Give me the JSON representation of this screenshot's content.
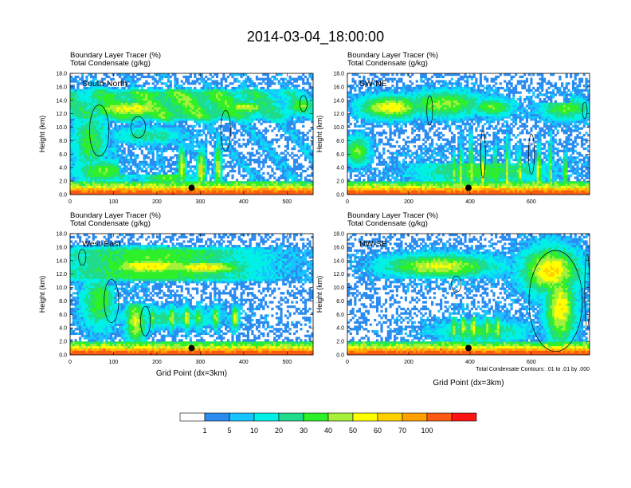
{
  "title": "2014-03-04_18:00:00",
  "colors": {
    "levels": [
      "#ffffff",
      "#2b8cf0",
      "#18c4ff",
      "#00f0e6",
      "#1fdc8c",
      "#2ef02a",
      "#a6f03a",
      "#ffff00",
      "#ffd000",
      "#ffa000",
      "#ff5a14",
      "#ff1414"
    ],
    "contour": "#000000",
    "marker": "#000000"
  },
  "chart_data": {
    "type": "heatmap",
    "main_title": "2014-03-04_18:00:00",
    "legend": {
      "labels": [
        "1",
        "5",
        "10",
        "20",
        "30",
        "40",
        "50",
        "60",
        "70",
        "100"
      ],
      "bins": 12
    },
    "panels": [
      {
        "id": "south-north",
        "label": "South-North",
        "title_line1": "Boundary Layer Tracer    (%)",
        "title_line2": "Total Condensate    (g/kg)",
        "ylabel": "Height (km)",
        "xlabel": "",
        "xlim": [
          0,
          560
        ],
        "ylim": [
          0,
          18
        ],
        "xticks": [
          0,
          100,
          200,
          300,
          400,
          500
        ],
        "xtick_labels": [
          "0",
          "100",
          "200",
          "300",
          "400",
          "500"
        ],
        "yticks": [
          0,
          2,
          4,
          6,
          8,
          10,
          12,
          14,
          16,
          18
        ],
        "ytick_labels": [
          "0.0",
          "2.0",
          "4.0",
          "6.0",
          "8.0",
          "10.0",
          "12.0",
          "14.0",
          "16.0",
          "18.0"
        ],
        "marker": [
          280,
          1.0
        ],
        "note": ""
      },
      {
        "id": "sw-ne",
        "label": "SW-NE",
        "title_line1": "Boundary Layer Tracer    (%)",
        "title_line2": "Total Condensate    (g/kg)",
        "ylabel": "Height (km)",
        "xlabel": "",
        "xlim": [
          0,
          790
        ],
        "ylim": [
          0,
          18
        ],
        "xticks": [
          0,
          200,
          400,
          600
        ],
        "xtick_labels": [
          "0",
          "200",
          "400",
          "600"
        ],
        "yticks": [
          0,
          2,
          4,
          6,
          8,
          10,
          12,
          14,
          16,
          18
        ],
        "ytick_labels": [
          "0.0",
          "2.0",
          "4.0",
          "6.0",
          "8.0",
          "10.0",
          "12.0",
          "14.0",
          "16.0",
          "18.0"
        ],
        "marker": [
          395,
          1.0
        ],
        "note": ""
      },
      {
        "id": "west-east",
        "label": "West-East",
        "title_line1": "Boundary Layer Tracer    (%)",
        "title_line2": "Total Condensate    (g/kg)",
        "ylabel": "Height (km)",
        "xlabel": "Grid Point (dx=3km)",
        "xlim": [
          0,
          560
        ],
        "ylim": [
          0,
          18
        ],
        "xticks": [
          0,
          100,
          200,
          300,
          400,
          500
        ],
        "xtick_labels": [
          "0",
          "100",
          "200",
          "300",
          "400",
          "500"
        ],
        "yticks": [
          0,
          2,
          4,
          6,
          8,
          10,
          12,
          14,
          16,
          18
        ],
        "ytick_labels": [
          "0.0",
          "2.0",
          "4.0",
          "6.0",
          "8.0",
          "10.0",
          "12.0",
          "14.0",
          "16.0",
          "18.0"
        ],
        "marker": [
          280,
          1.0
        ],
        "note": ""
      },
      {
        "id": "nw-se",
        "label": "NW-SE",
        "title_line1": "Boundary Layer Tracer    (%)",
        "title_line2": "Total Condensate    (g/kg)",
        "ylabel": "Height (km)",
        "xlabel": "Grid Point (dx=3km)",
        "xlim": [
          0,
          790
        ],
        "ylim": [
          0,
          18
        ],
        "xticks": [
          0,
          200,
          400,
          600
        ],
        "xtick_labels": [
          "0",
          "200",
          "400",
          "600"
        ],
        "yticks": [
          0,
          2,
          4,
          6,
          8,
          10,
          12,
          14,
          16,
          18
        ],
        "ytick_labels": [
          "0.0",
          "2.0",
          "4.0",
          "6.0",
          "8.0",
          "10.0",
          "12.0",
          "14.0",
          "16.0",
          "18.0"
        ],
        "marker": [
          395,
          1.0
        ],
        "note": "Total Condensate Contours: .01 to .01 by .000"
      }
    ]
  }
}
